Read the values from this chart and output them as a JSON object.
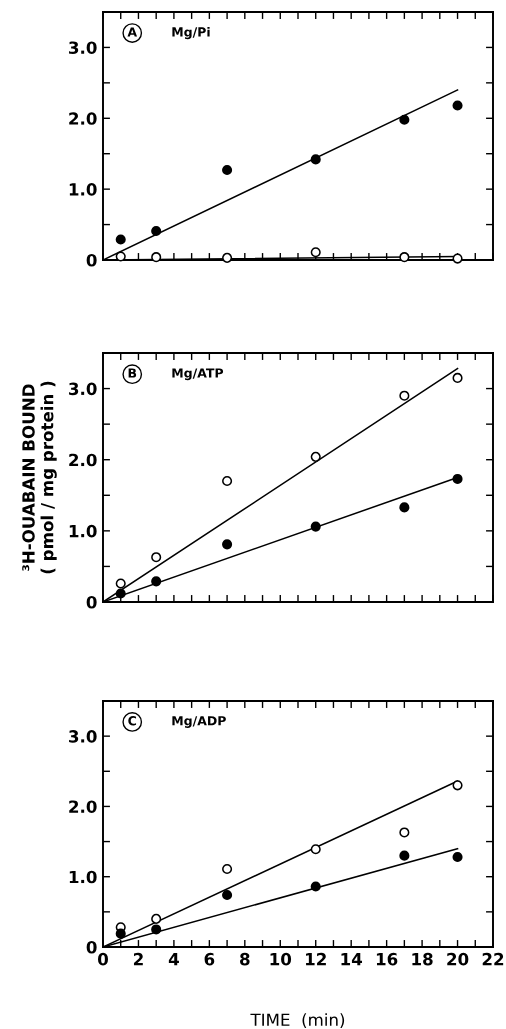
{
  "chart_data": [
    {
      "type": "scatter",
      "annotations": [
        "A",
        "Mg/Pi"
      ],
      "xlim": [
        0,
        22
      ],
      "ylim": [
        0,
        3.5
      ],
      "xticks": [
        0,
        {
          "value": 1,
          "label": null
        },
        2,
        {
          "value": 3,
          "label": null
        },
        4,
        {
          "value": 5,
          "label": null
        },
        6,
        {
          "value": 7,
          "label": null
        },
        8,
        {
          "value": 9,
          "label": null
        },
        10,
        {
          "value": 11,
          "label": null
        },
        12,
        {
          "value": 13,
          "label": null
        },
        14,
        {
          "value": 15,
          "label": null
        },
        16,
        {
          "value": 17,
          "label": null
        },
        18,
        {
          "value": 19,
          "label": null
        },
        20,
        {
          "value": 21,
          "label": null
        },
        22
      ],
      "yticks": [
        0,
        {
          "value": 0.5,
          "label": null
        },
        {
          "value": 1,
          "label": "1.0"
        },
        {
          "value": 1.5,
          "label": null
        },
        {
          "value": 2,
          "label": "2.0"
        },
        {
          "value": 2.5,
          "label": null
        },
        {
          "value": 3,
          "label": "3.0"
        }
      ],
      "tick_labels": "y",
      "grid": false,
      "legend": false,
      "series": [
        {
          "color": "#000000",
          "marker": "circle",
          "x": [
            1,
            3,
            7,
            12,
            17,
            20
          ],
          "values": [
            0.29,
            0.41,
            1.27,
            1.42,
            1.98,
            2.18
          ]
        },
        {
          "color": "#ffffff",
          "marker": "circle",
          "x": [
            1,
            3,
            7,
            12,
            17,
            20
          ],
          "values": [
            0.05,
            0.04,
            0.03,
            0.11,
            0.04,
            0.02
          ]
        },
        {
          "type": "line",
          "color": "#000000",
          "x": [
            0,
            20
          ],
          "values": [
            0,
            2.4
          ]
        },
        {
          "type": "line",
          "color": "#000000",
          "x": [
            0,
            20
          ],
          "values": [
            0,
            0.05
          ]
        }
      ]
    },
    {
      "type": "scatter",
      "annotations": [
        "B",
        "Mg/ATP"
      ],
      "ylabel": "³H-OUABAIN BOUND\n( pmol / mg protein )",
      "xlim": [
        0,
        22
      ],
      "ylim": [
        0,
        3.5
      ],
      "xticks": [
        0,
        {
          "value": 1,
          "label": null
        },
        2,
        {
          "value": 3,
          "label": null
        },
        4,
        {
          "value": 5,
          "label": null
        },
        6,
        {
          "value": 7,
          "label": null
        },
        8,
        {
          "value": 9,
          "label": null
        },
        10,
        {
          "value": 11,
          "label": null
        },
        12,
        {
          "value": 13,
          "label": null
        },
        14,
        {
          "value": 15,
          "label": null
        },
        16,
        {
          "value": 17,
          "label": null
        },
        18,
        {
          "value": 19,
          "label": null
        },
        20,
        {
          "value": 21,
          "label": null
        },
        22
      ],
      "yticks": [
        0,
        {
          "value": 0.5,
          "label": null
        },
        {
          "value": 1,
          "label": "1.0"
        },
        {
          "value": 1.5,
          "label": null
        },
        {
          "value": 2,
          "label": "2.0"
        },
        {
          "value": 2.5,
          "label": null
        },
        {
          "value": 3,
          "label": "3.0"
        }
      ],
      "tick_labels": "y",
      "grid": false,
      "legend": false,
      "series": [
        {
          "color": "#ffffff",
          "marker": "circle",
          "x": [
            1,
            3,
            7,
            12,
            17,
            20
          ],
          "values": [
            0.26,
            0.63,
            1.7,
            2.04,
            2.9,
            3.15
          ]
        },
        {
          "color": "#000000",
          "marker": "circle",
          "x": [
            1,
            3,
            7,
            12,
            17,
            20
          ],
          "values": [
            0.12,
            0.29,
            0.81,
            1.06,
            1.33,
            1.73
          ]
        },
        {
          "type": "line",
          "color": "#000000",
          "x": [
            0,
            20
          ],
          "values": [
            0,
            3.28
          ]
        },
        {
          "type": "line",
          "color": "#000000",
          "x": [
            0,
            20
          ],
          "values": [
            0,
            1.75
          ]
        }
      ]
    },
    {
      "type": "scatter",
      "annotations": [
        "C",
        "Mg/ADP"
      ],
      "xlabel": "TIME  (min)",
      "xlim": [
        0,
        22
      ],
      "ylim": [
        0,
        3.5
      ],
      "xticks": [
        0,
        {
          "value": 1,
          "label": null
        },
        2,
        {
          "value": 3,
          "label": null
        },
        4,
        {
          "value": 5,
          "label": null
        },
        6,
        {
          "value": 7,
          "label": null
        },
        8,
        {
          "value": 9,
          "label": null
        },
        10,
        {
          "value": 11,
          "label": null
        },
        12,
        {
          "value": 13,
          "label": null
        },
        14,
        {
          "value": 15,
          "label": null
        },
        16,
        {
          "value": 17,
          "label": null
        },
        18,
        {
          "value": 19,
          "label": null
        },
        20,
        {
          "value": 21,
          "label": null
        },
        22
      ],
      "yticks": [
        0,
        {
          "value": 0.5,
          "label": null
        },
        {
          "value": 1,
          "label": "1.0"
        },
        {
          "value": 1.5,
          "label": null
        },
        {
          "value": 2,
          "label": "2.0"
        },
        {
          "value": 2.5,
          "label": null
        },
        {
          "value": 3,
          "label": "3.0"
        }
      ],
      "grid": false,
      "legend": false,
      "series": [
        {
          "color": "#ffffff",
          "marker": "circle",
          "x": [
            1,
            3,
            7,
            12,
            17,
            20
          ],
          "values": [
            0.28,
            0.4,
            1.11,
            1.39,
            1.63,
            2.3
          ]
        },
        {
          "color": "#000000",
          "marker": "circle",
          "x": [
            1,
            3,
            7,
            12,
            17,
            20
          ],
          "values": [
            0.19,
            0.25,
            0.74,
            0.86,
            1.3,
            1.28
          ]
        },
        {
          "type": "line",
          "color": "#000000",
          "x": [
            0,
            20
          ],
          "values": [
            0,
            2.36
          ]
        },
        {
          "type": "line",
          "color": "#000000",
          "x": [
            0,
            20
          ],
          "values": [
            0,
            1.4
          ]
        }
      ]
    }
  ]
}
